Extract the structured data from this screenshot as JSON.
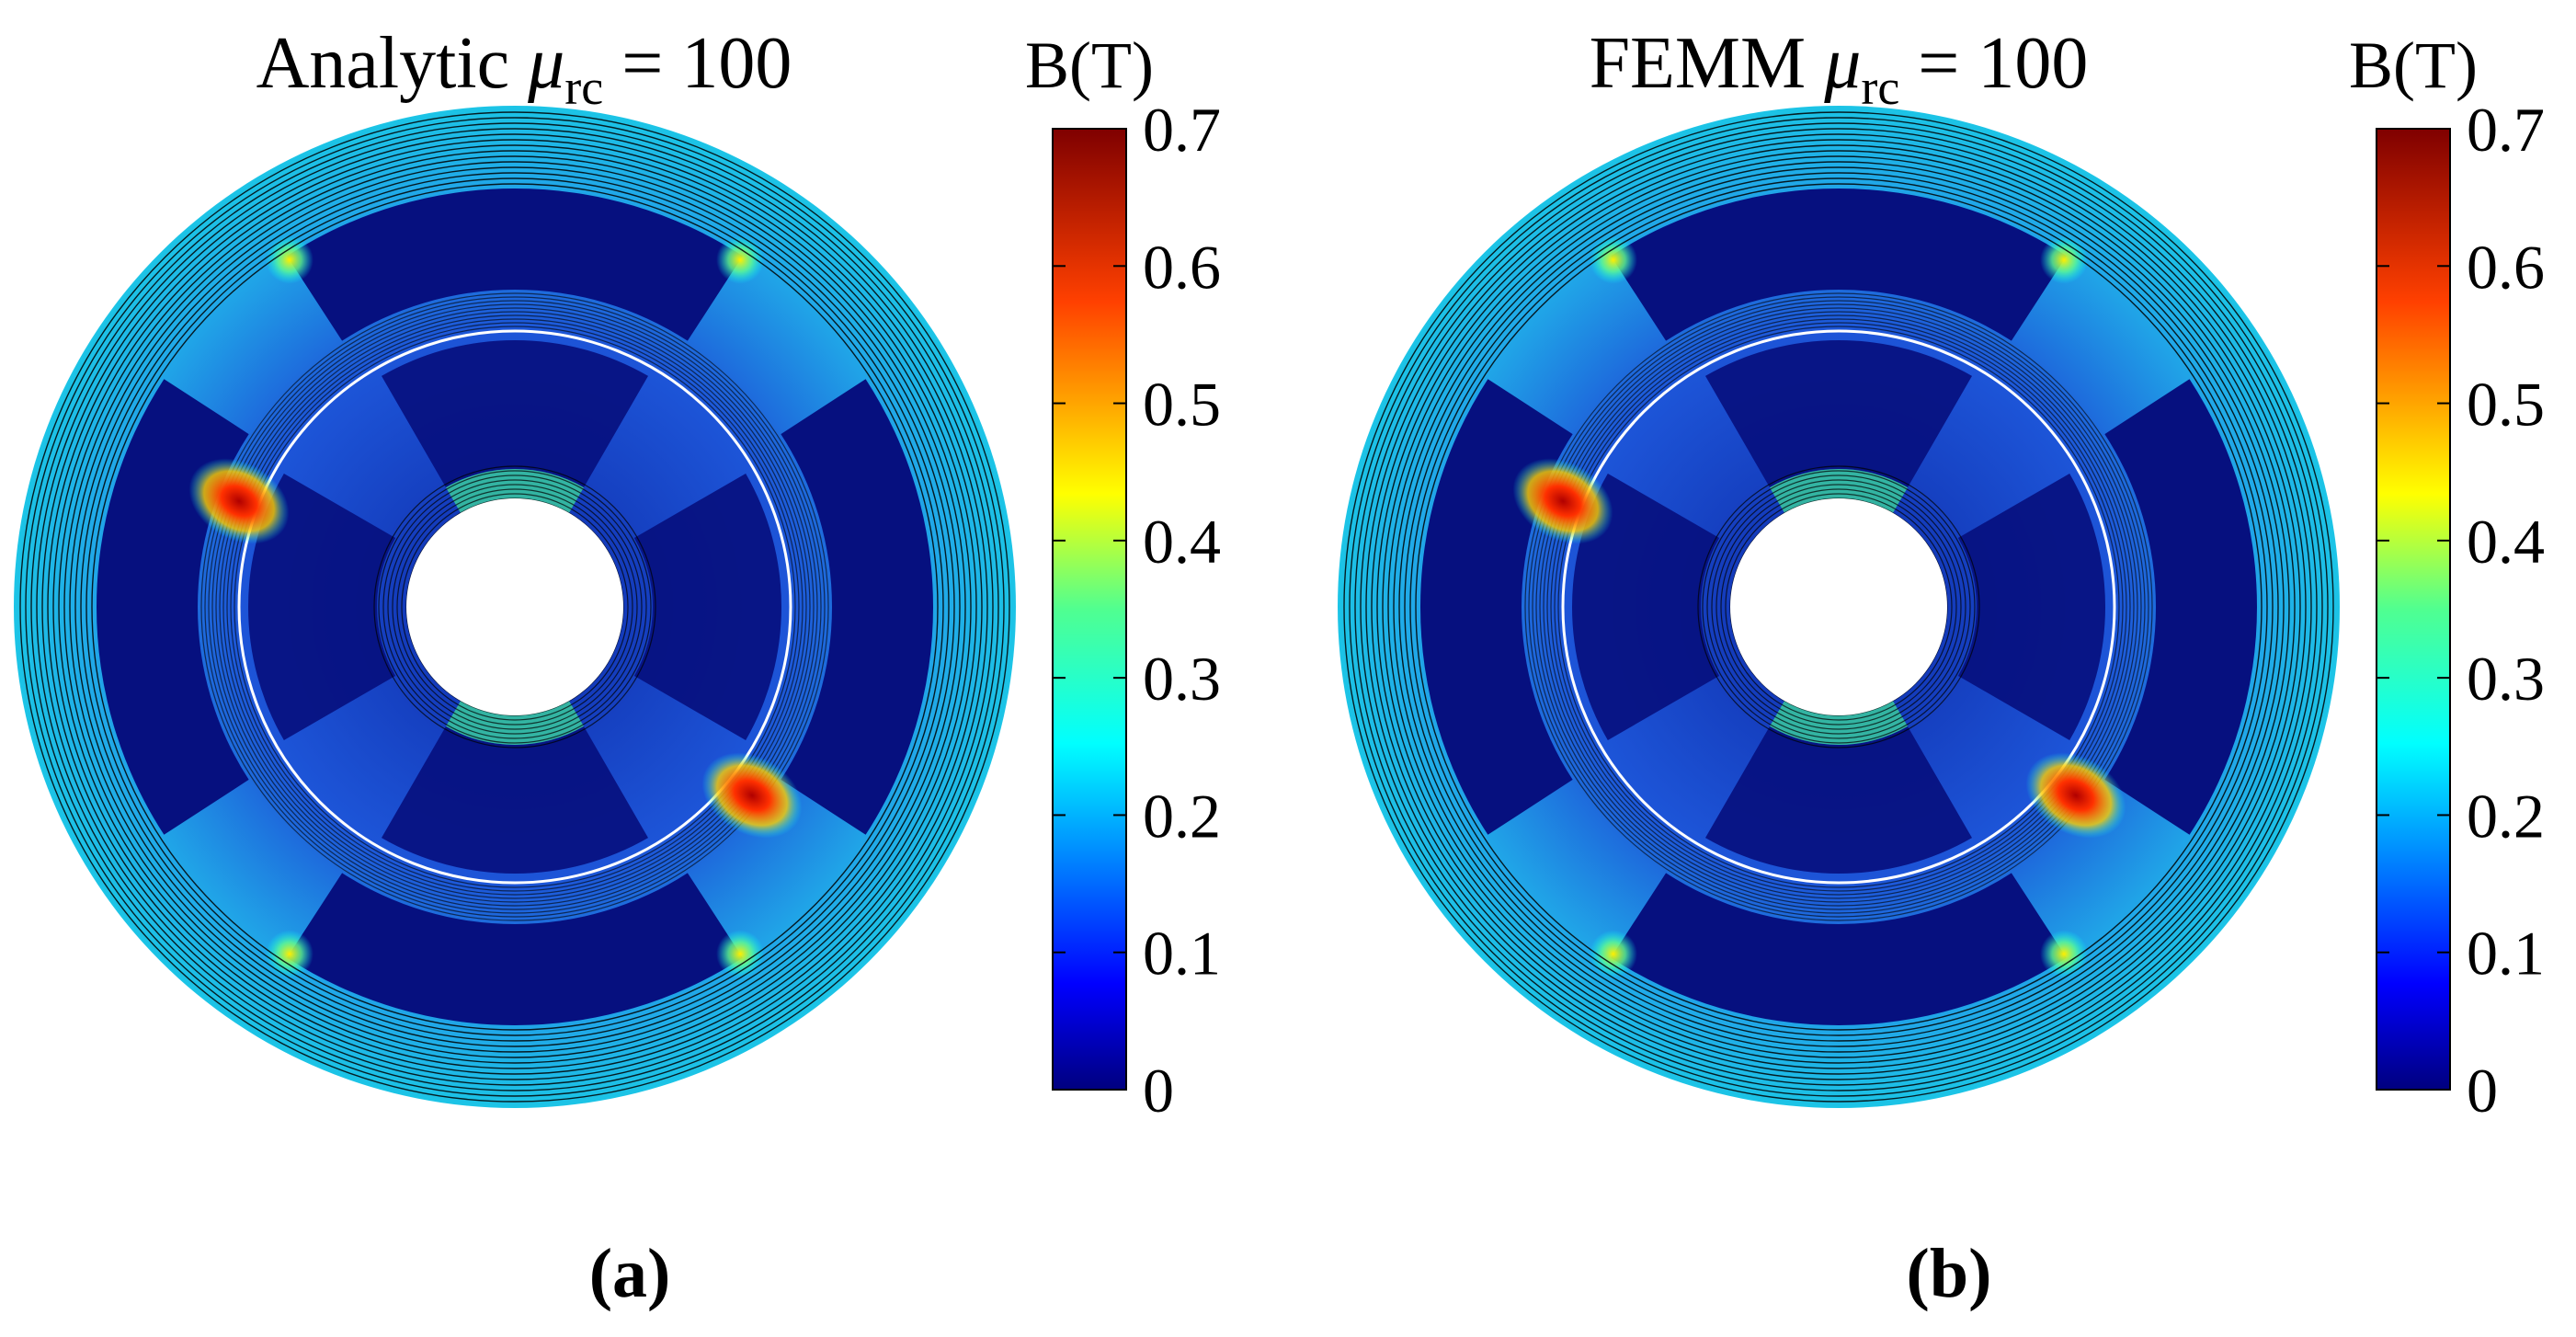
{
  "panels": [
    {
      "id": "a",
      "title_prefix": "Analytic ",
      "title_symbol": "μ",
      "title_subscript": "rc",
      "title_suffix": " = 100",
      "caption": "(a)",
      "colorbar_label": "B(T)",
      "colorbar_ticks": [
        "0.7",
        "0.6",
        "0.5",
        "0.4",
        "0.3",
        "0.2",
        "0.1",
        "0"
      ]
    },
    {
      "id": "b",
      "title_prefix": "FEMM ",
      "title_symbol": "μ",
      "title_subscript": "rc",
      "title_suffix": " = 100",
      "caption": "(b)",
      "colorbar_label": "B(T)",
      "colorbar_ticks": [
        "0.7",
        "0.6",
        "0.5",
        "0.4",
        "0.3",
        "0.2",
        "0.1",
        "0"
      ]
    }
  ],
  "colormap": {
    "name": "jet",
    "min": 0,
    "max": 0.7,
    "stops": [
      "#00007f",
      "#0000ff",
      "#0080ff",
      "#00ffff",
      "#80ff80",
      "#ffff00",
      "#ff8000",
      "#ff0000",
      "#7f0000"
    ]
  },
  "field_colors": {
    "background": "#2563d6",
    "slot": "#06107f",
    "hole": "#ffffff",
    "flux_line": "#000000",
    "airgap_circle": "#ffffff",
    "hotspot": "#ff2200",
    "teeth_edge": "#ffcc00"
  }
}
